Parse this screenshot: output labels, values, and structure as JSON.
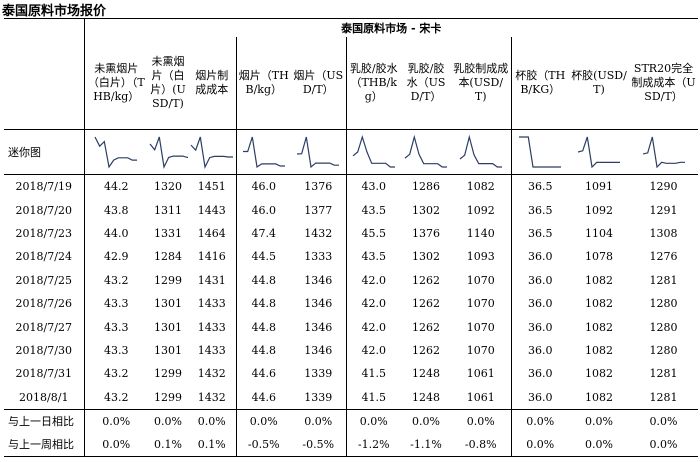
{
  "page_title": "泰国原料市场报价",
  "market_title": "泰国原料市场 - 宋卡",
  "mini_label": "迷你图",
  "columns": [
    {
      "id": "unsmoked_thb",
      "header": "未熏烟片（白片）（THB/kg）"
    },
    {
      "id": "unsmoked_usd",
      "header": "未熏烟片（白片）(USD/T)"
    },
    {
      "id": "sheet_cost",
      "header": "烟片制成成本"
    },
    {
      "id": "rss_thb",
      "header": "烟片（THB/kg）"
    },
    {
      "id": "rss_usd",
      "header": "烟片（USD/T）"
    },
    {
      "id": "latex_thb",
      "header": "乳胶/胶水（THB/kg）"
    },
    {
      "id": "latex_usd",
      "header": "乳胶/胶水（USD/T）"
    },
    {
      "id": "latex_cost",
      "header": "乳胶制成成本(USD/T)"
    },
    {
      "id": "cup_thb",
      "header": "杯胶（THB/KG）"
    },
    {
      "id": "cup_usd",
      "header": "杯胶(USD/T)"
    },
    {
      "id": "str20_cost",
      "header": "STR20完全制成成本（USD/T）"
    }
  ],
  "rows": [
    {
      "date": "2018/7/19",
      "values": [
        "44.2",
        "1320",
        "1451",
        "46.0",
        "1376",
        "43.0",
        "1286",
        "1082",
        "36.5",
        "1091",
        "1290"
      ]
    },
    {
      "date": "2018/7/20",
      "values": [
        "43.8",
        "1311",
        "1443",
        "46.0",
        "1377",
        "43.5",
        "1302",
        "1092",
        "36.5",
        "1092",
        "1291"
      ]
    },
    {
      "date": "2018/7/23",
      "values": [
        "44.0",
        "1331",
        "1464",
        "47.4",
        "1432",
        "45.5",
        "1376",
        "1140",
        "36.5",
        "1104",
        "1308"
      ]
    },
    {
      "date": "2018/7/24",
      "values": [
        "42.9",
        "1284",
        "1416",
        "44.5",
        "1333",
        "43.5",
        "1302",
        "1093",
        "36.0",
        "1078",
        "1276"
      ]
    },
    {
      "date": "2018/7/25",
      "values": [
        "43.2",
        "1299",
        "1431",
        "44.8",
        "1346",
        "42.0",
        "1262",
        "1070",
        "36.0",
        "1082",
        "1281"
      ]
    },
    {
      "date": "2018/7/26",
      "values": [
        "43.3",
        "1301",
        "1433",
        "44.8",
        "1346",
        "42.0",
        "1262",
        "1070",
        "36.0",
        "1082",
        "1280"
      ]
    },
    {
      "date": "2018/7/27",
      "values": [
        "43.3",
        "1301",
        "1433",
        "44.8",
        "1346",
        "42.0",
        "1262",
        "1070",
        "36.0",
        "1082",
        "1280"
      ]
    },
    {
      "date": "2018/7/30",
      "values": [
        "43.3",
        "1301",
        "1433",
        "44.8",
        "1346",
        "42.0",
        "1262",
        "1070",
        "36.0",
        "1082",
        "1280"
      ]
    },
    {
      "date": "2018/7/31",
      "values": [
        "43.2",
        "1299",
        "1432",
        "44.6",
        "1339",
        "41.5",
        "1248",
        "1061",
        "36.0",
        "1082",
        "1281"
      ]
    },
    {
      "date": "2018/8/1",
      "values": [
        "43.2",
        "1299",
        "1432",
        "44.6",
        "1339",
        "41.5",
        "1248",
        "1061",
        "36.0",
        "1082",
        "1281"
      ]
    }
  ],
  "comparisons": [
    {
      "label": "与上一日相比",
      "values": [
        "0.0%",
        "0.0%",
        "0.0%",
        "0.0%",
        "0.0%",
        "0.0%",
        "0.0%",
        "0.0%",
        "0.0%",
        "0.0%",
        "0.0%"
      ]
    },
    {
      "label": "与上一周相比",
      "values": [
        "0.0%",
        "0.1%",
        "0.1%",
        "-0.5%",
        "-0.5%",
        "-1.2%",
        "-1.1%",
        "-0.8%",
        "0.0%",
        "0.0%",
        "0.0%"
      ]
    }
  ],
  "colors": {
    "sparkline": "#2c3e64"
  }
}
